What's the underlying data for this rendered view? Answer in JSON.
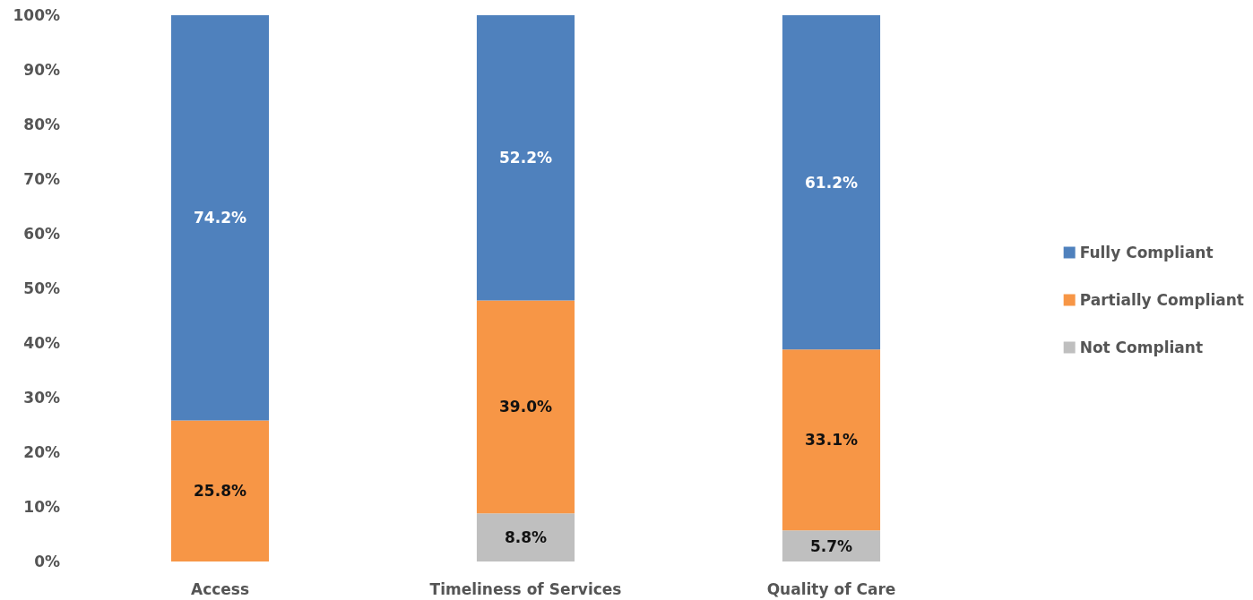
{
  "chart_data": {
    "type": "bar",
    "stacked": true,
    "categories": [
      "Access",
      "Timeliness of Services",
      "Quality of Care"
    ],
    "series": [
      {
        "name": "Not Compliant",
        "color": "#bfbfbf",
        "values": [
          null,
          8.8,
          5.7
        ],
        "value_labels": [
          null,
          "8.8%",
          "5.7%"
        ]
      },
      {
        "name": "Partially Compliant",
        "color": "#f79646",
        "values": [
          25.8,
          39.0,
          33.1
        ],
        "value_labels": [
          "25.8%",
          "39.0%",
          "33.1%"
        ]
      },
      {
        "name": "Fully Compliant",
        "color": "#4f81bd",
        "values": [
          74.2,
          52.2,
          61.2
        ],
        "value_labels": [
          "74.2%",
          "52.2%",
          "61.2%"
        ]
      }
    ],
    "ylim": [
      0,
      100
    ],
    "yticks": [
      {
        "value": 0,
        "label": "0%"
      },
      {
        "value": 10,
        "label": "10%"
      },
      {
        "value": 20,
        "label": "20%"
      },
      {
        "value": 30,
        "label": "30%"
      },
      {
        "value": 40,
        "label": "40%"
      },
      {
        "value": 50,
        "label": "50%"
      },
      {
        "value": 60,
        "label": "60%"
      },
      {
        "value": 70,
        "label": "70%"
      },
      {
        "value": 80,
        "label": "80%"
      },
      {
        "value": 90,
        "label": "90%"
      },
      {
        "value": 100,
        "label": "100%"
      }
    ],
    "grid": false,
    "legend": "right"
  }
}
